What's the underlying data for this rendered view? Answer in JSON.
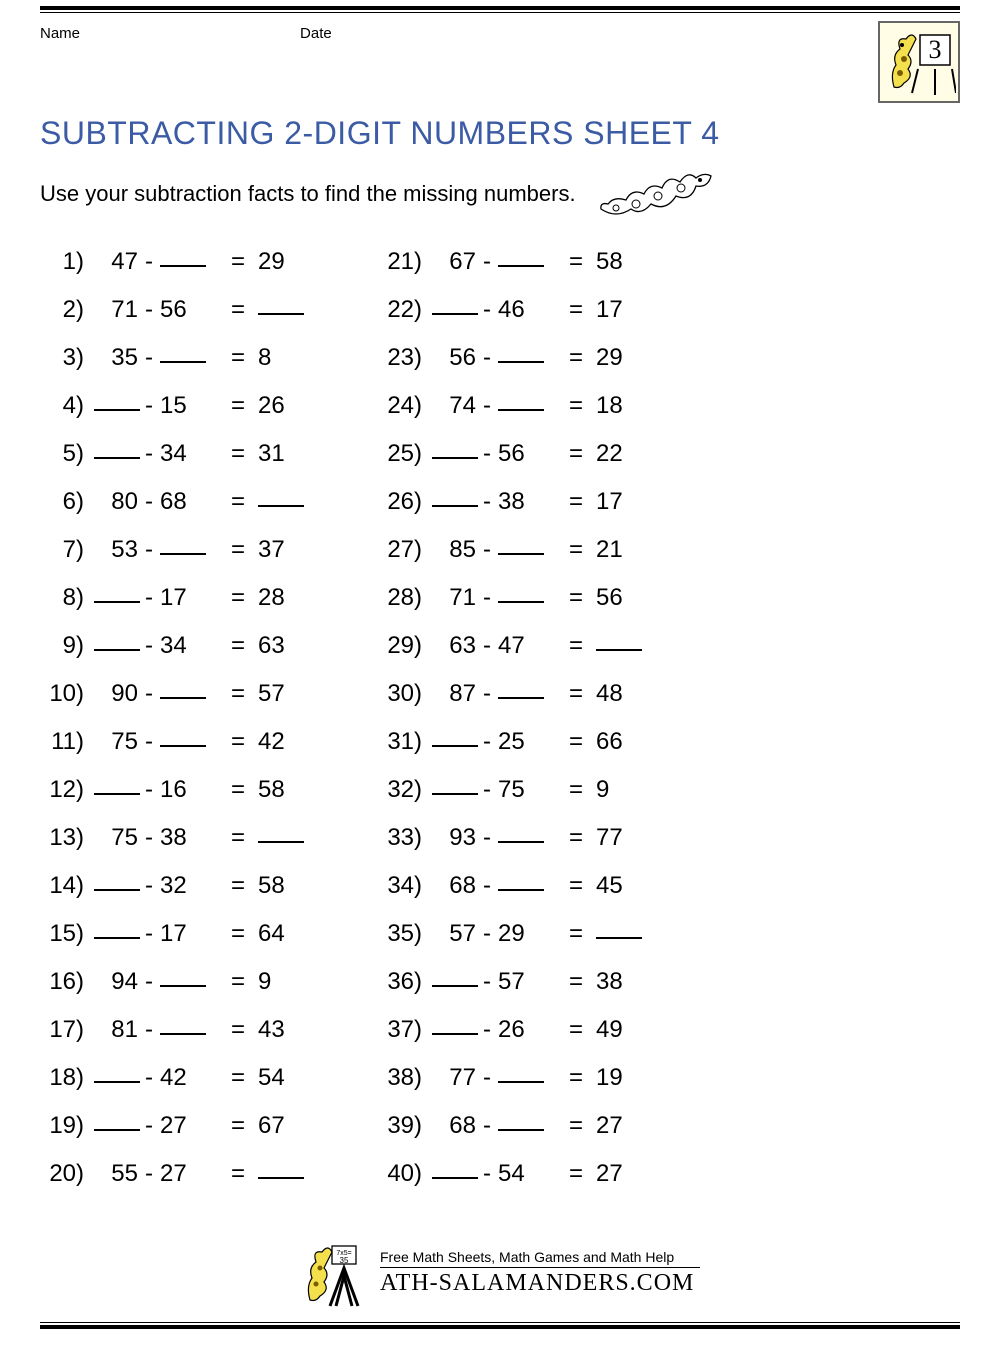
{
  "header": {
    "name_label": "Name",
    "date_label": "Date",
    "grade_number": "3"
  },
  "title": "SUBTRACTING 2-DIGIT NUMBERS SHEET 4",
  "instructions": "Use your subtraction facts to find the missing numbers.",
  "colors": {
    "title": "#3b5ba5",
    "text": "#000000",
    "badge_bg": "#fffde6",
    "badge_border": "#666666"
  },
  "typography": {
    "title_fontsize": 32,
    "body_fontsize": 22,
    "problem_fontsize": 24
  },
  "layout": {
    "columns": 2,
    "rows_per_column": 20,
    "blank_token": "___"
  },
  "problems": [
    {
      "n": 1,
      "a": "47",
      "b": "___",
      "r": "29"
    },
    {
      "n": 2,
      "a": "71",
      "b": "56",
      "r": "___"
    },
    {
      "n": 3,
      "a": "35",
      "b": "___",
      "r": "8"
    },
    {
      "n": 4,
      "a": "___",
      "b": "15",
      "r": "26"
    },
    {
      "n": 5,
      "a": "___",
      "b": "34",
      "r": "31"
    },
    {
      "n": 6,
      "a": "80",
      "b": "68",
      "r": "___"
    },
    {
      "n": 7,
      "a": "53",
      "b": "___",
      "r": "37"
    },
    {
      "n": 8,
      "a": "___",
      "b": "17",
      "r": "28"
    },
    {
      "n": 9,
      "a": "___",
      "b": "34",
      "r": "63"
    },
    {
      "n": 10,
      "a": "90",
      "b": "___",
      "r": "57"
    },
    {
      "n": 11,
      "a": "75",
      "b": "___",
      "r": "42"
    },
    {
      "n": 12,
      "a": "___",
      "b": "16",
      "r": "58"
    },
    {
      "n": 13,
      "a": "75",
      "b": "38",
      "r": "___"
    },
    {
      "n": 14,
      "a": "___",
      "b": "32",
      "r": "58"
    },
    {
      "n": 15,
      "a": "___",
      "b": "17",
      "r": "64"
    },
    {
      "n": 16,
      "a": "94",
      "b": "___",
      "r": "9"
    },
    {
      "n": 17,
      "a": "81",
      "b": "___",
      "r": "43"
    },
    {
      "n": 18,
      "a": "___",
      "b": "42",
      "r": "54"
    },
    {
      "n": 19,
      "a": "___",
      "b": "27",
      "r": "67"
    },
    {
      "n": 20,
      "a": "55",
      "b": "27",
      "r": "___"
    },
    {
      "n": 21,
      "a": "67",
      "b": "___",
      "r": "58"
    },
    {
      "n": 22,
      "a": "___",
      "b": "46",
      "r": "17"
    },
    {
      "n": 23,
      "a": "56",
      "b": "___",
      "r": "29"
    },
    {
      "n": 24,
      "a": "74",
      "b": "___",
      "r": "18"
    },
    {
      "n": 25,
      "a": "___",
      "b": "56",
      "r": "22"
    },
    {
      "n": 26,
      "a": "___",
      "b": "38",
      "r": "17"
    },
    {
      "n": 27,
      "a": "85",
      "b": "___",
      "r": "21"
    },
    {
      "n": 28,
      "a": "71",
      "b": "___",
      "r": "56"
    },
    {
      "n": 29,
      "a": "63",
      "b": "47",
      "r": "___"
    },
    {
      "n": 30,
      "a": "87",
      "b": "___",
      "r": "48"
    },
    {
      "n": 31,
      "a": "___",
      "b": "25",
      "r": "66"
    },
    {
      "n": 32,
      "a": "___",
      "b": "75",
      "r": "9"
    },
    {
      "n": 33,
      "a": "93",
      "b": "___",
      "r": "77"
    },
    {
      "n": 34,
      "a": "68",
      "b": "___",
      "r": "45"
    },
    {
      "n": 35,
      "a": "57",
      "b": "29",
      "r": "___"
    },
    {
      "n": 36,
      "a": "___",
      "b": "57",
      "r": "38"
    },
    {
      "n": 37,
      "a": "___",
      "b": "26",
      "r": "49"
    },
    {
      "n": 38,
      "a": "77",
      "b": "___",
      "r": "19"
    },
    {
      "n": 39,
      "a": "68",
      "b": "___",
      "r": "27"
    },
    {
      "n": 40,
      "a": "___",
      "b": "54",
      "r": "27"
    }
  ],
  "footer": {
    "tagline": "Free Math Sheets, Math Games and Math Help",
    "site": "ATH-SALAMANDERS.COM"
  }
}
